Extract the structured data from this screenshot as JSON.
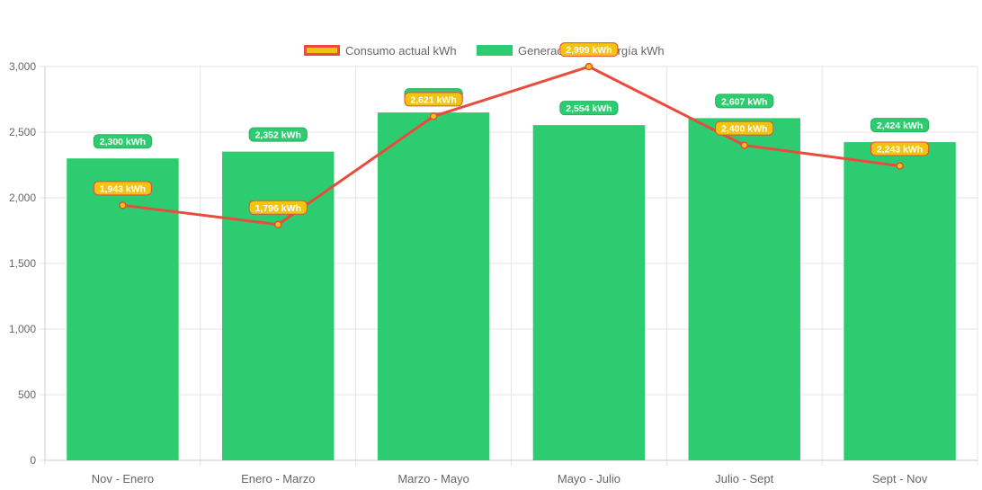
{
  "chart_data": {
    "type": "bar",
    "categories": [
      "Nov - Enero",
      "Enero - Marzo",
      "Marzo - Mayo",
      "Mayo - Julio",
      "Julio - Sept",
      "Sept - Nov"
    ],
    "ylim": [
      0,
      3000
    ],
    "yticks": [
      0,
      500,
      1000,
      1500,
      2000,
      2500,
      3000
    ],
    "ytick_labels": [
      "0",
      "500",
      "1,000",
      "1,500",
      "2,000",
      "2,500",
      "3,000"
    ],
    "grid": true,
    "legend_position": "top-center",
    "series": [
      {
        "name": "Consumo actual kWh",
        "type": "line",
        "color": "#e74c3c",
        "fill": "#f1c40f",
        "values": [
          1943,
          1796,
          2621,
          2999,
          2400,
          2243
        ],
        "data_labels": [
          "1,943 kWh",
          "1,796 kWh",
          "2,621 kWh",
          "2,999 kWh",
          "2,400 kWh",
          "2,243 kWh"
        ]
      },
      {
        "name": "Generación de energía kWh",
        "type": "bar",
        "color": "#2ecc71",
        "values": [
          2300,
          2352,
          2650,
          2554,
          2607,
          2424
        ],
        "data_labels": [
          "2,300 kWh",
          "2,352 kWh",
          "2,650 kWh",
          "2,554 kWh",
          "2,607 kWh",
          "2,424 kWh"
        ]
      }
    ]
  }
}
